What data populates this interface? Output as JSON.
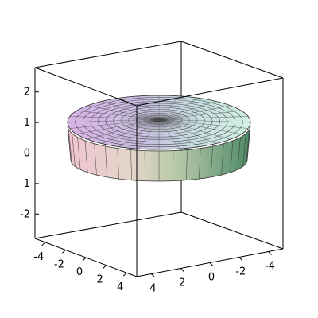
{
  "chart_data": {
    "type": "surface3d",
    "description_of_surface": "disc-shaped plateau with vertical side wall and concentric ridged top surface",
    "x_ticks": [
      -4,
      -2,
      0,
      2,
      4
    ],
    "y_ticks": [
      4,
      2,
      0,
      -2,
      -4
    ],
    "z_ticks": [
      -2,
      -1,
      0,
      1,
      2
    ],
    "x_tick_labels": [
      "-4",
      "-2",
      "0",
      "2",
      "4"
    ],
    "y_tick_labels": [
      "4",
      "2",
      "0",
      "-2",
      "-4"
    ],
    "z_tick_labels": [
      "-2",
      "-1",
      "0",
      "1",
      "2"
    ],
    "x_range": [
      -5,
      5
    ],
    "y_range": [
      -5,
      5
    ],
    "z_range": [
      -2.8,
      2.8
    ],
    "title": "",
    "xlabel": "",
    "ylabel": "",
    "zlabel": "",
    "box": true,
    "surface_colors": {
      "wall_left": "#e6b8c8",
      "wall_mid": "#d9d9c0",
      "wall_right": "#5c9070",
      "top_left": "#c9a6dc",
      "top_right": "#c8e8d8",
      "top_center": "#555555"
    }
  }
}
